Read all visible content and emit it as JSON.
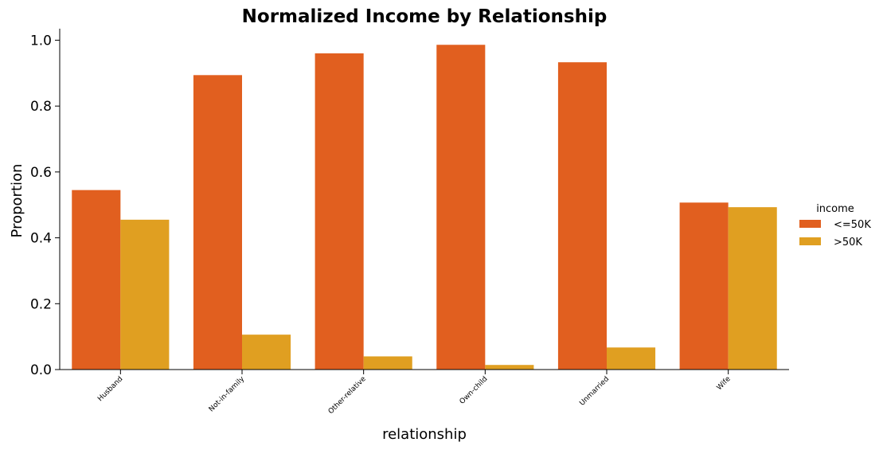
{
  "chart_data": {
    "type": "bar",
    "title": "Normalized Income by Relationship",
    "xlabel": "relationship",
    "ylabel": "Proportion",
    "categories": [
      "Husband",
      "Not-in-family",
      "Other-relative",
      "Own-child",
      "Unmarried",
      "Wife"
    ],
    "series": [
      {
        "name": "<=50K",
        "color": "#e15f1f",
        "values": [
          0.545,
          0.894,
          0.96,
          0.986,
          0.933,
          0.507
        ]
      },
      {
        "name": ">50K",
        "color": "#e09f21",
        "values": [
          0.455,
          0.106,
          0.04,
          0.014,
          0.067,
          0.493
        ]
      }
    ],
    "ylim": [
      0,
      1.035
    ],
    "yticks": [
      "0.0",
      "0.2",
      "0.4",
      "0.6",
      "0.8",
      "1.0"
    ],
    "legend": {
      "title": "income",
      "placement": "right"
    },
    "grid": false
  }
}
